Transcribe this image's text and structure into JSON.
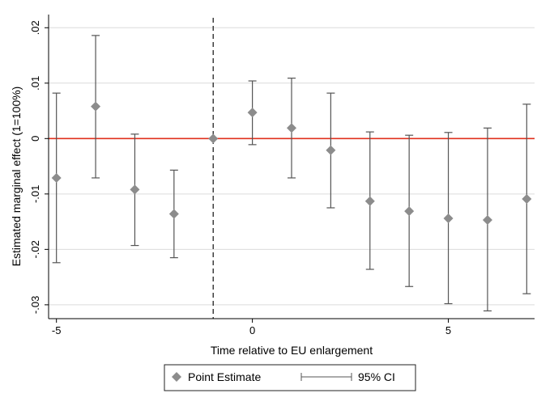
{
  "chart_data": {
    "type": "scatter",
    "title": "",
    "xlabel": "Time relative to EU enlargement",
    "ylabel": "Estimated marginal effect (1=100%)",
    "xlim": [
      -5.2,
      7.2
    ],
    "ylim": [
      -0.0325,
      0.0215
    ],
    "x_ticks": [
      {
        "value": -5,
        "label": "-5"
      },
      {
        "value": 0,
        "label": "0"
      },
      {
        "value": 5,
        "label": "5"
      }
    ],
    "y_ticks": [
      {
        "value": 0.02,
        "label": ".02"
      },
      {
        "value": 0.01,
        "label": ".01"
      },
      {
        "value": 0,
        "label": "0"
      },
      {
        "value": -0.01,
        "label": "-.01"
      },
      {
        "value": -0.02,
        "label": "-.02"
      },
      {
        "value": -0.03,
        "label": "-.03"
      }
    ],
    "grid": true,
    "reference_line_y": 0,
    "reference_line_x": -1,
    "legend_position": "bottom",
    "series": [
      {
        "name": "Point Estimate",
        "marker": "diamond",
        "color": "#8c8c8c",
        "points": [
          {
            "x": -5,
            "y": -0.0071
          },
          {
            "x": -4,
            "y": 0.0058
          },
          {
            "x": -3,
            "y": -0.0092
          },
          {
            "x": -2,
            "y": -0.0136
          },
          {
            "x": -1,
            "y": 0.0
          },
          {
            "x": 0,
            "y": 0.0047
          },
          {
            "x": 1,
            "y": 0.0019
          },
          {
            "x": 2,
            "y": -0.0021
          },
          {
            "x": 3,
            "y": -0.0113
          },
          {
            "x": 4,
            "y": -0.0131
          },
          {
            "x": 5,
            "y": -0.0144
          },
          {
            "x": 6,
            "y": -0.0147
          },
          {
            "x": 7,
            "y": -0.0109
          }
        ]
      },
      {
        "name": "95% CI",
        "marker": "range",
        "color": "#555555",
        "ranges": [
          {
            "x": -5,
            "low": -0.0224,
            "high": 0.0082
          },
          {
            "x": -4,
            "low": -0.0071,
            "high": 0.0186
          },
          {
            "x": -3,
            "low": -0.0193,
            "high": 0.0008
          },
          {
            "x": -2,
            "low": -0.0215,
            "high": -0.0057
          },
          {
            "x": 0,
            "low": -0.0011,
            "high": 0.0104
          },
          {
            "x": 1,
            "low": -0.0071,
            "high": 0.0109
          },
          {
            "x": 2,
            "low": -0.0125,
            "high": 0.0082
          },
          {
            "x": 3,
            "low": -0.0236,
            "high": 0.0012
          },
          {
            "x": 4,
            "low": -0.0267,
            "high": 0.0006
          },
          {
            "x": 5,
            "low": -0.0298,
            "high": 0.0011
          },
          {
            "x": 6,
            "low": -0.0311,
            "high": 0.0019
          },
          {
            "x": 7,
            "low": -0.028,
            "high": 0.0062
          }
        ]
      }
    ]
  },
  "colors": {
    "zero_line": "#e0301e",
    "dashed_line": "#222222",
    "grid": "#dcdcdc",
    "axis": "#000000"
  }
}
